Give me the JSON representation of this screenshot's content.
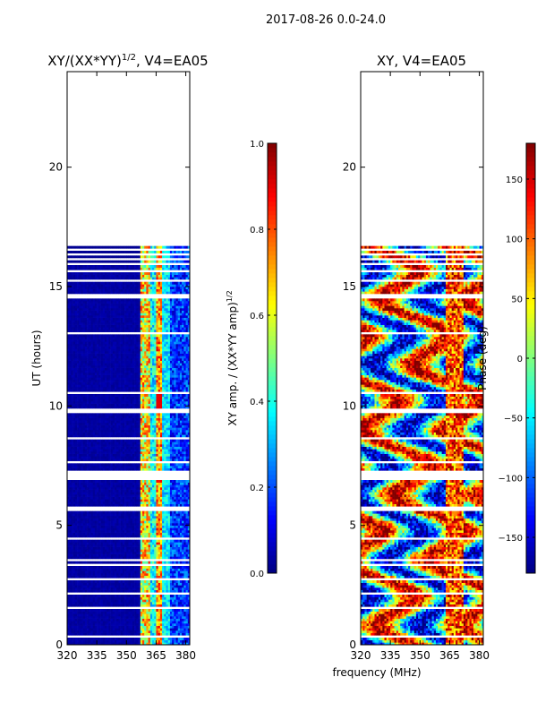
{
  "suptitle": "2017-08-26 0.0-24.0",
  "colors": {
    "background": "#ffffff",
    "axis": "#000000",
    "colormap": [
      "#00007f",
      "#0000ff",
      "#007fff",
      "#00ffff",
      "#7fff7f",
      "#ffff00",
      "#ff7f00",
      "#ff0000",
      "#7f0000"
    ]
  },
  "chart_data": [
    {
      "type": "heatmap",
      "title_main": "XY/(XX*YY)",
      "title_sup": "1/2",
      "title_tail": ", V4=EA05",
      "xlabel": "",
      "ylabel": "UT (hours)",
      "xlim": [
        320,
        382
      ],
      "ylim": [
        0,
        24
      ],
      "xticks": [
        320,
        335,
        350,
        365,
        380
      ],
      "xtick_labels": [
        "320",
        "335",
        "350",
        "365",
        "380"
      ],
      "yticks": [
        0,
        5,
        10,
        15,
        20
      ],
      "ytick_labels": [
        "0",
        "5",
        "10",
        "15",
        "20"
      ],
      "data_extent_hours": [
        0,
        16.7
      ],
      "colorbar": {
        "label": "XY amp. / (XX*YY amp)",
        "label_sup": "1/2",
        "range": [
          0.0,
          1.0
        ],
        "ticks": [
          0.0,
          0.2,
          0.4,
          0.6,
          0.8,
          1.0
        ],
        "tick_labels": [
          "0.0",
          "0.2",
          "0.4",
          "0.6",
          "0.8",
          "1.0"
        ]
      }
    },
    {
      "type": "heatmap",
      "title_main": "XY, V4=EA05",
      "xlabel": "frequency (MHz)",
      "ylabel": "",
      "xlim": [
        320,
        382
      ],
      "ylim": [
        0,
        24
      ],
      "xticks": [
        320,
        335,
        350,
        365,
        380
      ],
      "xtick_labels": [
        "320",
        "335",
        "350",
        "365",
        "380"
      ],
      "yticks": [
        0,
        5,
        10,
        15,
        20
      ],
      "ytick_labels": [
        "0",
        "5",
        "10",
        "15",
        "20"
      ],
      "data_extent_hours": [
        0,
        16.7
      ],
      "colorbar": {
        "label": "Phase (deg)",
        "range": [
          -180,
          180
        ],
        "ticks": [
          -150,
          -100,
          -50,
          0,
          50,
          100,
          150
        ],
        "tick_labels": [
          "−150",
          "−100",
          "−50",
          "0",
          "50",
          "100",
          "150"
        ]
      }
    }
  ]
}
